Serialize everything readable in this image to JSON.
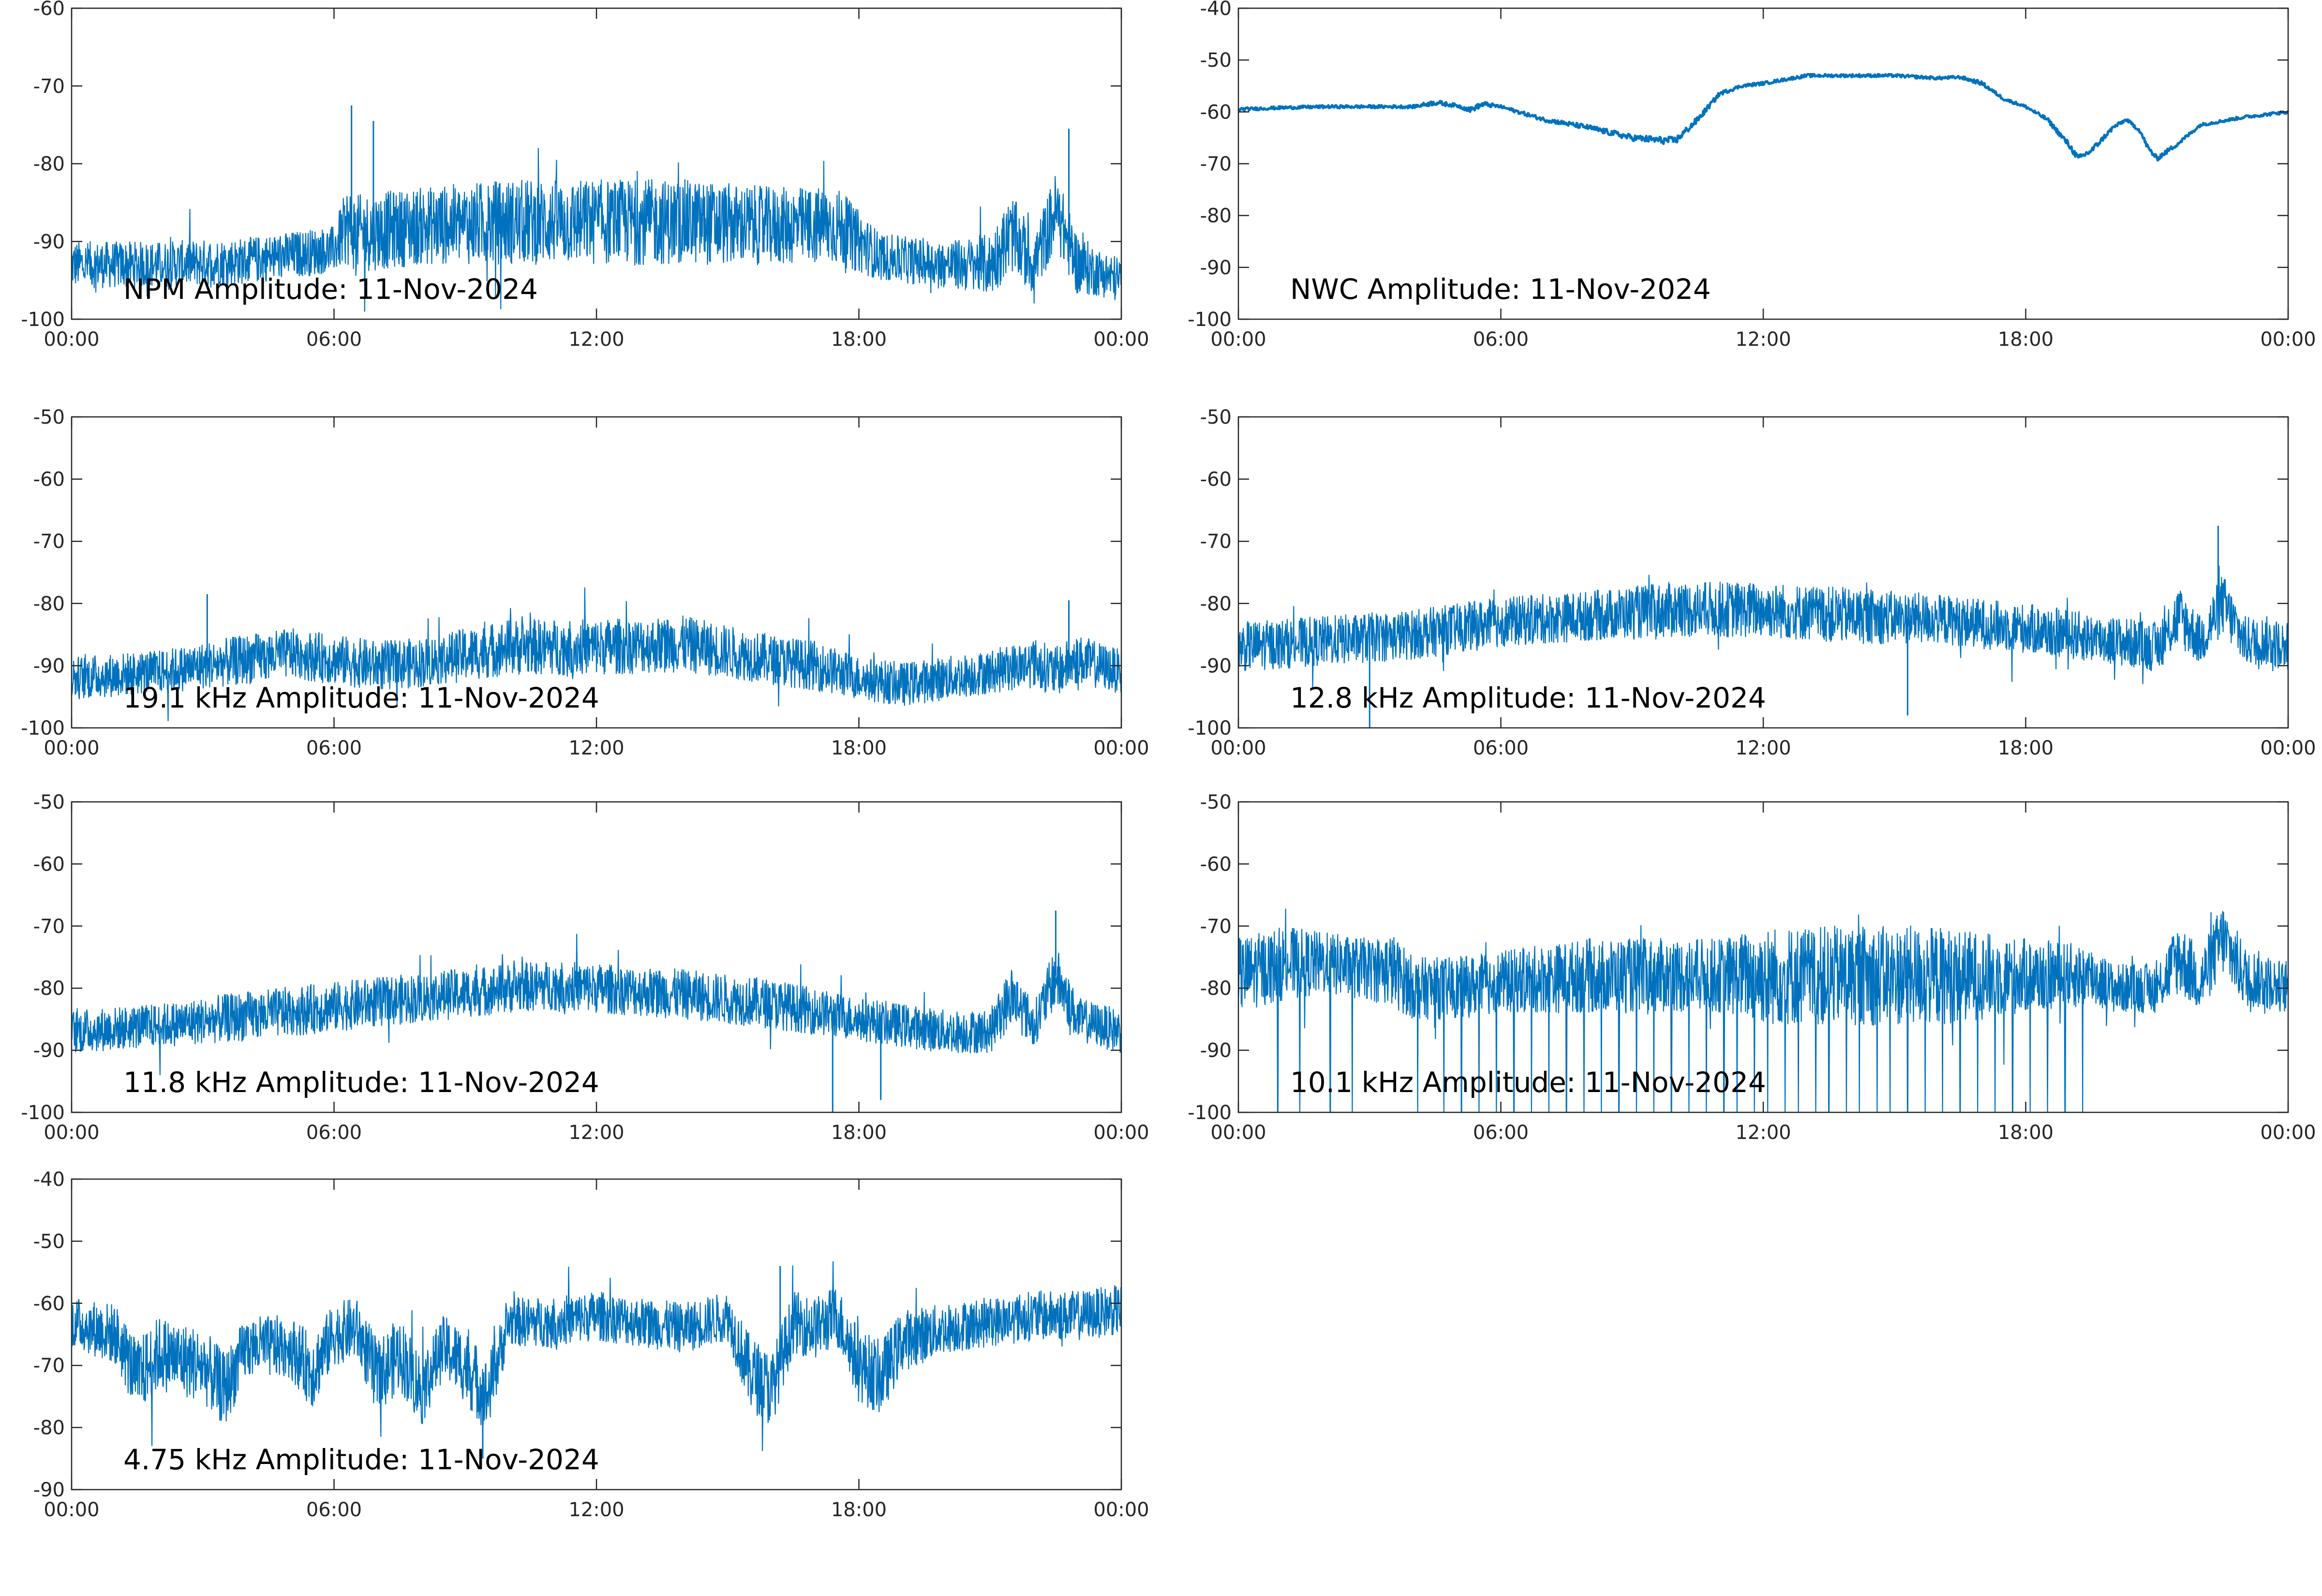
{
  "figure": {
    "background": "#ffffff",
    "line_color": "#0072bd",
    "axis_color": "#262626"
  },
  "chart_data": [
    {
      "type": "line",
      "title": "NPM Amplitude: 11-Nov-2024",
      "x_ticks": [
        "00:00",
        "06:00",
        "12:00",
        "18:00",
        "00:00"
      ],
      "ylim": [
        -100,
        -60
      ],
      "y_ticks": [
        -100,
        -90,
        -80,
        -70,
        -60
      ],
      "grid": false,
      "series": [
        {
          "x_hours": [
            0,
            2,
            4,
            6,
            6.3,
            6.5,
            8,
            10,
            12,
            14,
            16,
            17.5,
            18.5,
            20,
            21,
            21.5,
            22,
            22.5,
            23,
            23.5,
            24
          ],
          "mean": [
            -93,
            -93,
            -92.5,
            -91,
            -88,
            -89,
            -88,
            -87.5,
            -87.5,
            -87.5,
            -88,
            -88,
            -92,
            -93,
            -93,
            -89,
            -93,
            -86,
            -93,
            -94,
            -95
          ],
          "spread": [
            3,
            3,
            3,
            3,
            5,
            5,
            5,
            5.5,
            5.5,
            5.5,
            5,
            5,
            3,
            3,
            4,
            5,
            4,
            5,
            4,
            3,
            3
          ],
          "spikes": [
            {
              "x": 6.4,
              "y": -72.5
            },
            {
              "x": 6.9,
              "y": -74.5
            },
            {
              "x": 22.8,
              "y": -75.5
            }
          ]
        }
      ]
    },
    {
      "type": "line",
      "title": "NWC Amplitude: 11-Nov-2024",
      "x_ticks": [
        "00:00",
        "06:00",
        "12:00",
        "18:00",
        "00:00"
      ],
      "ylim": [
        -100,
        -40
      ],
      "y_ticks": [
        -100,
        -90,
        -80,
        -70,
        -60,
        -50,
        -40
      ],
      "grid": false,
      "series": [
        {
          "x_hours": [
            0,
            1,
            2,
            3,
            4,
            4.5,
            5,
            5.3,
            5.6,
            6,
            7,
            8,
            9,
            9.7,
            10,
            10.5,
            11,
            11.5,
            12,
            13,
            14,
            15,
            16,
            16.5,
            17,
            17.5,
            18,
            18.5,
            19,
            19.2,
            19.5,
            20,
            20.3,
            20.6,
            20.8,
            21,
            21.5,
            22,
            23,
            24
          ],
          "mean": [
            -59.5,
            -59.2,
            -59.0,
            -59.0,
            -59.0,
            -58.2,
            -58.8,
            -59.6,
            -58.5,
            -59.0,
            -61.5,
            -63.0,
            -65.0,
            -65.5,
            -65.5,
            -61.5,
            -56.5,
            -55.0,
            -54.5,
            -53.0,
            -53.0,
            -53.0,
            -53.5,
            -53.3,
            -54.5,
            -57.5,
            -59.0,
            -61.5,
            -66.5,
            -69.0,
            -67.5,
            -63.0,
            -61.5,
            -63.5,
            -67.0,
            -69.0,
            -66.0,
            -62.5,
            -61.0,
            -60.0
          ],
          "spread": [
            0.3,
            0.3,
            0.3,
            0.3,
            0.3,
            0.5,
            0.3,
            0.5,
            0.5,
            0.3,
            0.4,
            0.5,
            0.6,
            0.7,
            0.7,
            0.6,
            0.4,
            0.3,
            0.3,
            0.3,
            0.3,
            0.3,
            0.3,
            0.3,
            0.4,
            0.3,
            0.3,
            0.4,
            0.6,
            0.6,
            0.6,
            0.4,
            0.3,
            0.4,
            0.5,
            0.5,
            0.4,
            0.3,
            0.3,
            0.3
          ],
          "spikes": []
        }
      ]
    },
    {
      "type": "line",
      "title": "19.1 kHz Amplitude: 11-Nov-2024",
      "x_ticks": [
        "00:00",
        "06:00",
        "12:00",
        "18:00",
        "00:00"
      ],
      "ylim": [
        -100,
        -50
      ],
      "y_ticks": [
        -100,
        -90,
        -80,
        -70,
        -60,
        -50
      ],
      "grid": false,
      "series": [
        {
          "x_hours": [
            0,
            2,
            4,
            5,
            6,
            7,
            8,
            10,
            12,
            14,
            16,
            17,
            18,
            19,
            20,
            21,
            22,
            22.5,
            23,
            24
          ],
          "mean": [
            -92,
            -91,
            -89,
            -88,
            -89,
            -90,
            -89.5,
            -87,
            -87,
            -86.5,
            -89,
            -90,
            -92,
            -93,
            -92,
            -91,
            -89.5,
            -91,
            -89,
            -91
          ],
          "spread": [
            3.5,
            3.5,
            4,
            4,
            4,
            4,
            4,
            4.5,
            4.5,
            4.5,
            4,
            4,
            3.5,
            3.5,
            3.5,
            3.5,
            4,
            4,
            4,
            3.5
          ],
          "spikes": [
            {
              "x": 3.1,
              "y": -78.5
            },
            {
              "x": 22.8,
              "y": -79.5
            }
          ]
        }
      ]
    },
    {
      "type": "line",
      "title": "12.8 kHz Amplitude: 11-Nov-2024",
      "x_ticks": [
        "00:00",
        "06:00",
        "12:00",
        "18:00",
        "00:00"
      ],
      "ylim": [
        -100,
        -50
      ],
      "y_ticks": [
        -100,
        -90,
        -80,
        -70,
        -60,
        -50
      ],
      "grid": false,
      "series": [
        {
          "x_hours": [
            0,
            2,
            4,
            6,
            8,
            10,
            12,
            14,
            16,
            18,
            20,
            21,
            21.5,
            22,
            22.5,
            23,
            23.5,
            24
          ],
          "mean": [
            -87,
            -86,
            -85,
            -83,
            -82,
            -81,
            -81,
            -82,
            -82.5,
            -84,
            -86,
            -87,
            -82,
            -86,
            -80,
            -86,
            -86,
            -87
          ],
          "spread": [
            4,
            4,
            4,
            4,
            4,
            4.5,
            4.5,
            4.5,
            4,
            4,
            4,
            4,
            5,
            4,
            5,
            4,
            4,
            4
          ],
          "spikes": [
            {
              "x": 22.4,
              "y": -67.5
            },
            {
              "x": 15.3,
              "y": -98
            },
            {
              "x": 3.0,
              "y": -100
            }
          ]
        }
      ]
    },
    {
      "type": "line",
      "title": "11.8 kHz Amplitude: 11-Nov-2024",
      "x_ticks": [
        "00:00",
        "06:00",
        "12:00",
        "18:00",
        "00:00"
      ],
      "ylim": [
        -100,
        -50
      ],
      "y_ticks": [
        -100,
        -90,
        -80,
        -70,
        -60,
        -50
      ],
      "grid": false,
      "series": [
        {
          "x_hours": [
            0,
            2,
            4,
            6,
            8,
            10,
            11,
            12,
            14,
            16,
            18,
            20,
            21,
            21.5,
            22,
            22.5,
            23,
            23.5,
            24
          ],
          "mean": [
            -87,
            -86,
            -84.5,
            -83,
            -81.5,
            -80,
            -79.5,
            -80,
            -81,
            -82.5,
            -85,
            -87,
            -87,
            -81,
            -86,
            -78,
            -85,
            -86,
            -87
          ],
          "spread": [
            3.5,
            3.5,
            4,
            4,
            4,
            4,
            4,
            4,
            4,
            4,
            3.5,
            3.5,
            3.5,
            5,
            3.5,
            5,
            3.5,
            3.5,
            3.5
          ],
          "spikes": [
            {
              "x": 22.5,
              "y": -67.5
            },
            {
              "x": 17.4,
              "y": -100
            },
            {
              "x": 18.5,
              "y": -98
            }
          ]
        }
      ]
    },
    {
      "type": "line",
      "title": "10.1 kHz Amplitude: 11-Nov-2024",
      "x_ticks": [
        "00:00",
        "06:00",
        "12:00",
        "18:00",
        "00:00"
      ],
      "ylim": [
        -100,
        -50
      ],
      "y_ticks": [
        -100,
        -90,
        -80,
        -70,
        -60,
        -50
      ],
      "grid": false,
      "series": [
        {
          "x_hours": [
            0,
            1,
            2,
            3,
            3.5,
            4,
            5,
            6,
            8,
            10,
            11,
            12,
            14,
            16,
            18,
            19.5,
            20,
            21,
            21.5,
            22,
            22.5,
            23,
            24
          ],
          "mean": [
            -78,
            -76,
            -76,
            -77,
            -77,
            -80,
            -80,
            -79,
            -78,
            -78,
            -78,
            -78,
            -78,
            -78,
            -78,
            -78,
            -80,
            -80,
            -75,
            -79,
            -72,
            -78,
            -80
          ],
          "spread": [
            6,
            6,
            5,
            5,
            6,
            5,
            5,
            5,
            6,
            6,
            6,
            8,
            8,
            8,
            6,
            5,
            4,
            4,
            6,
            5,
            6,
            5,
            4
          ],
          "spikes": [],
          "dropouts": [
            0.9,
            1.4,
            2.1,
            2.6,
            4.1,
            4.7,
            5.1,
            5.5,
            5.9,
            6.3,
            6.7,
            7.1,
            7.5,
            7.9,
            8.3,
            8.7,
            9.1,
            9.5,
            9.9,
            10.3,
            10.7,
            11.1,
            11.4,
            11.8,
            12.1,
            12.5,
            12.8,
            13.2,
            13.5,
            13.9,
            14.2,
            14.6,
            14.9,
            15.3,
            15.7,
            16.1,
            16.5,
            16.9,
            17.3,
            17.7,
            18.1,
            18.5,
            18.9,
            19.3
          ]
        }
      ]
    },
    {
      "type": "line",
      "title": "4.75 kHz Amplitude: 11-Nov-2024",
      "x_ticks": [
        "00:00",
        "06:00",
        "12:00",
        "18:00",
        "00:00"
      ],
      "ylim": [
        -90,
        -40
      ],
      "y_ticks": [
        -90,
        -80,
        -70,
        -60,
        -50,
        -40
      ],
      "grid": false,
      "series": [
        {
          "x_hours": [
            0,
            1,
            1.5,
            2,
            3,
            3.5,
            4,
            5,
            5.5,
            6,
            6.5,
            7,
            7.5,
            8,
            8.5,
            9,
            9.5,
            10,
            11,
            12,
            13,
            14,
            15,
            15.5,
            16,
            16.5,
            17,
            17.5,
            18,
            18.5,
            19,
            20,
            21,
            22,
            23,
            24
          ],
          "mean": [
            -63,
            -65,
            -72,
            -68,
            -70,
            -74,
            -67,
            -67,
            -71,
            -65,
            -64,
            -72,
            -68,
            -74,
            -67,
            -70,
            -75,
            -63,
            -63,
            -62,
            -63,
            -64,
            -62,
            -71,
            -74,
            -63,
            -64,
            -62,
            -70,
            -72,
            -66,
            -64,
            -63,
            -62,
            -62,
            -61
          ],
          "spread": [
            4,
            5,
            6,
            6,
            6,
            6,
            5,
            5,
            6,
            5,
            5,
            6,
            6,
            6,
            5,
            6,
            6,
            4,
            4,
            4,
            4,
            4,
            4,
            6,
            6,
            5,
            5,
            5,
            6,
            6,
            5,
            4,
            4,
            4,
            4,
            4
          ],
          "spikes": [
            {
              "x": 9.4,
              "y": -85
            },
            {
              "x": 16.2,
              "y": -54
            }
          ]
        }
      ]
    }
  ]
}
